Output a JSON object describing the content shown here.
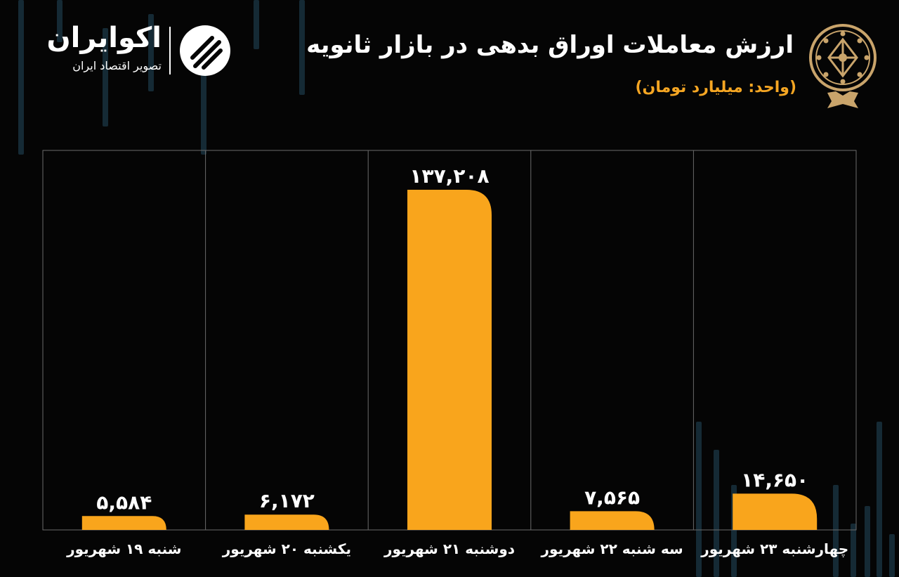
{
  "header": {
    "title": "ارزش معاملات اوراق بدهی در بازار ثانویه",
    "unit": "(واحد: میلیارد تومان)"
  },
  "brand": {
    "name": "اکوایران",
    "tagline": "تصویر اقتصاد ایران"
  },
  "colors": {
    "bar": "#f9a51c",
    "background": "#050505",
    "text": "#ffffff",
    "accent": "#f5a623",
    "grid": "#6a6a6a",
    "emblem": "#c9a46b",
    "candle": "#152a35"
  },
  "chart_data": {
    "type": "bar",
    "categories": [
      "شنبه ۱۹ شهریور",
      "یکشنبه ۲۰ شهریور",
      "دوشنبه ۲۱ شهریور",
      "سه شنبه ۲۲ شهریور",
      "چهارشنبه ۲۳ شهریور"
    ],
    "values": [
      5584,
      6172,
      137208,
      7565,
      14650
    ],
    "data_labels": [
      "۵,۵۸۴",
      "۶,۱۷۲",
      "۱۳۷,۲۰۸",
      "۷,۵۶۵",
      "۱۴,۶۵۰"
    ],
    "title": "ارزش معاملات اوراق بدهی در بازار ثانویه",
    "ylabel": "",
    "xlabel": "",
    "ylim": [
      0,
      146000
    ],
    "grid": "vertical separators",
    "legend": "none"
  }
}
